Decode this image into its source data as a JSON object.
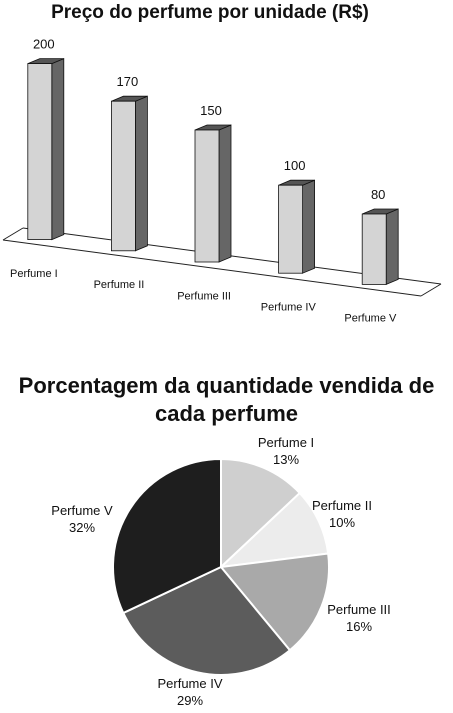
{
  "chart_data": [
    {
      "type": "bar",
      "title": "Preço do perfume por unidade (R$)",
      "categories": [
        "Perfume I",
        "Perfume II",
        "Perfume III",
        "Perfume IV",
        "Perfume V"
      ],
      "values": [
        200,
        170,
        150,
        100,
        80
      ],
      "data_labels": [
        "200",
        "170",
        "150",
        "100",
        "80"
      ],
      "style": "3d-columns",
      "front_color": "#d4d4d4",
      "side_color": "#666666",
      "top_color": "#555555",
      "grid": false
    },
    {
      "type": "pie",
      "title": "Porcentagem da quantidade vendida de cada perfume",
      "title_lines": [
        "Porcentagem da quantidade vendida de",
        "cada perfume"
      ],
      "categories": [
        "Perfume I",
        "Perfume II",
        "Perfume III",
        "Perfume IV",
        "Perfume V"
      ],
      "values": [
        13,
        10,
        16,
        29,
        32
      ],
      "percent_labels": [
        "13%",
        "10%",
        "16%",
        "29%",
        "32%"
      ],
      "colors": [
        "#cfcfcf",
        "#ececec",
        "#a9a9a9",
        "#5c5c5c",
        "#1e1e1e"
      ]
    }
  ]
}
